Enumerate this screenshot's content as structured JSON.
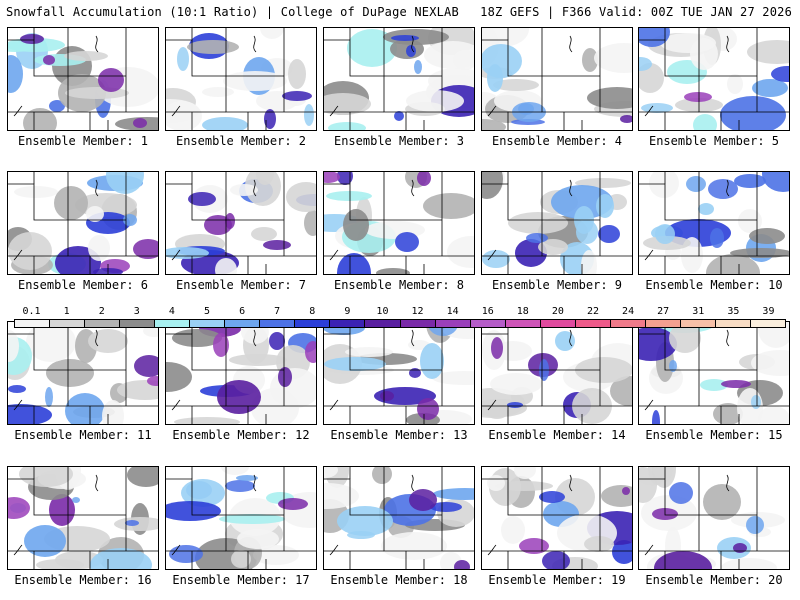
{
  "header": {
    "left": "Snowfall Accumulation (10:1 Ratio) | College of DuPage NEXLAB",
    "right": "18Z GEFS | F366 Valid: 00Z TUE JAN 27 2026"
  },
  "members": [
    {
      "label": "Ensemble Member: 1"
    },
    {
      "label": "Ensemble Member: 2"
    },
    {
      "label": "Ensemble Member: 3"
    },
    {
      "label": "Ensemble Member: 4"
    },
    {
      "label": "Ensemble Member: 5"
    },
    {
      "label": "Ensemble Member: 6"
    },
    {
      "label": "Ensemble Member: 7"
    },
    {
      "label": "Ensemble Member: 8"
    },
    {
      "label": "Ensemble Member: 9"
    },
    {
      "label": "Ensemble Member: 10"
    },
    {
      "label": "Ensemble Member: 11"
    },
    {
      "label": "Ensemble Member: 12"
    },
    {
      "label": "Ensemble Member: 13"
    },
    {
      "label": "Ensemble Member: 14"
    },
    {
      "label": "Ensemble Member: 15"
    },
    {
      "label": "Ensemble Member: 16"
    },
    {
      "label": "Ensemble Member: 17"
    },
    {
      "label": "Ensemble Member: 18"
    },
    {
      "label": "Ensemble Member: 19"
    },
    {
      "label": "Ensemble Member: 20"
    }
  ],
  "colorbar": {
    "labels": [
      "0.1",
      "1",
      "2",
      "3",
      "4",
      "5",
      "6",
      "7",
      "8",
      "9",
      "10",
      "12",
      "14",
      "16",
      "18",
      "20",
      "22",
      "24",
      "27",
      "31",
      "35",
      "39"
    ],
    "colors": [
      "#f4f4f4",
      "#d6d6d6",
      "#b2b2b2",
      "#8c8c8c",
      "#a8f0f0",
      "#9ad0f5",
      "#6ea6ee",
      "#4d72e6",
      "#2c3fd8",
      "#3b22b4",
      "#5a1fa0",
      "#7a2aa8",
      "#9a3fba",
      "#b55cc8",
      "#cf55b8",
      "#e04a9e",
      "#ee5a8a",
      "#f07a8a",
      "#f4a090",
      "#f6c0a8",
      "#f8dcc4",
      "#faeedd"
    ]
  }
}
